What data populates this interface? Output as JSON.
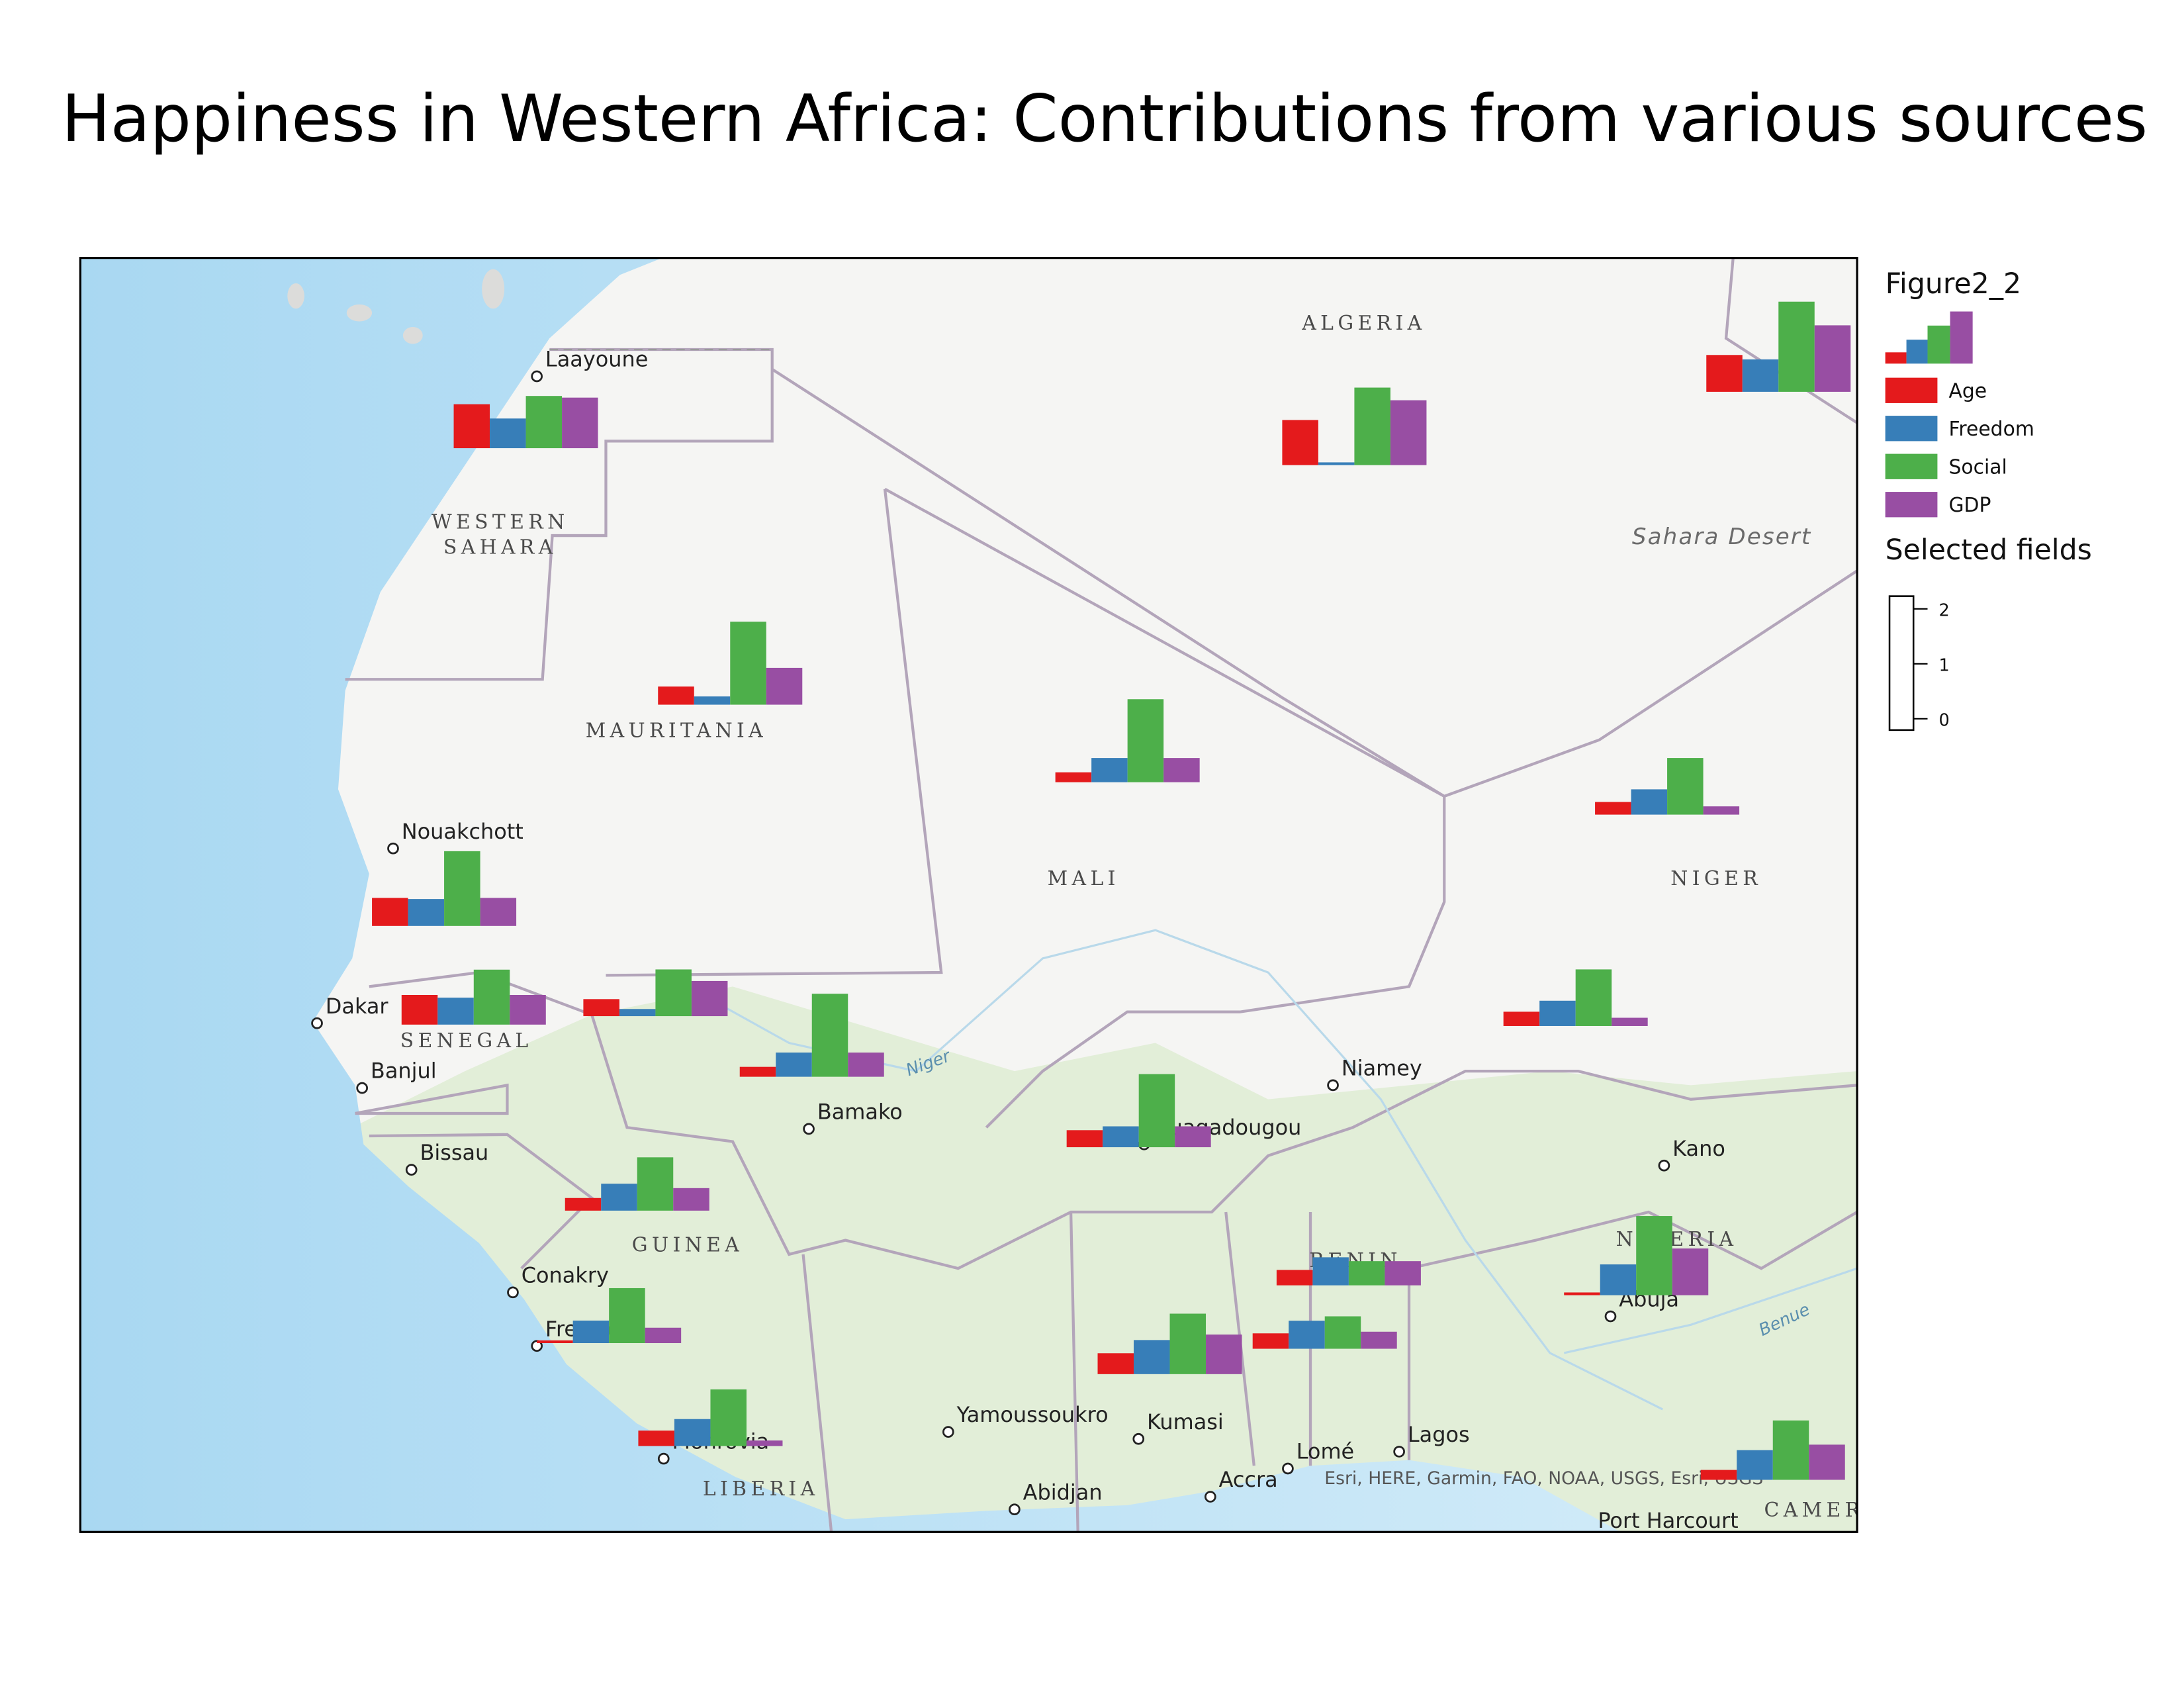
{
  "title": "Happiness in Western Africa: Contributions from various sources",
  "legend": {
    "title": "Figure2_2",
    "series": [
      {
        "name": "Age",
        "color": "#e41a1c"
      },
      {
        "name": "Freedom",
        "color": "#377eb8"
      },
      {
        "name": "Social",
        "color": "#4daf4a"
      },
      {
        "name": "GDP",
        "color": "#984ea3"
      }
    ],
    "size_title": "Selected fields",
    "size_ticks": [
      0,
      1,
      2
    ]
  },
  "charts": [
    {
      "values": [
        0.8,
        0.54,
        0.95,
        0.92
      ]
    },
    {
      "values": [
        0.82,
        0.05,
        1.41,
        1.18
      ]
    },
    {
      "values": [
        0.67,
        0.59,
        1.64,
        1.21
      ]
    },
    {
      "values": [
        0.33,
        0.15,
        1.51,
        0.67
      ]
    },
    {
      "values": [
        0.18,
        0.44,
        1.51,
        0.44
      ]
    },
    {
      "values": [
        0.23,
        0.46,
        1.03,
        0.15
      ]
    },
    {
      "values": [
        0.51,
        0.49,
        1.36,
        0.51
      ]
    },
    {
      "values": [
        0.54,
        0.49,
        1.0,
        0.54
      ]
    },
    {
      "values": [
        0.31,
        0.13,
        0.85,
        0.64
      ]
    },
    {
      "values": [
        0.18,
        0.44,
        1.51,
        0.44
      ]
    },
    {
      "values": [
        0.31,
        0.38,
        1.33,
        0.38
      ]
    },
    {
      "values": [
        0.26,
        0.46,
        1.03,
        0.15
      ]
    },
    {
      "values": [
        0.23,
        0.49,
        0.97,
        0.41
      ]
    },
    {
      "values": [
        0.05,
        0.41,
        1.0,
        0.28
      ]
    },
    {
      "values": [
        0.28,
        0.49,
        1.03,
        0.1
      ]
    },
    {
      "values": [
        0.38,
        0.62,
        1.1,
        0.72
      ]
    },
    {
      "values": [
        0.28,
        0.51,
        0.44,
        0.44
      ]
    },
    {
      "values": [
        0.28,
        0.51,
        0.59,
        0.31
      ]
    },
    {
      "values": [
        0.05,
        0.56,
        1.44,
        0.85
      ]
    },
    {
      "values": [
        0.18,
        0.54,
        1.08,
        0.64
      ]
    }
  ],
  "countries": [
    "ALGERIA",
    "WESTERN",
    "SAHARA",
    "MAURITANIA",
    "MALI",
    "NIGER",
    "SENEGAL",
    "GUINEA",
    "LIBERIA",
    "BENIN",
    "NIGERIA",
    "CAMEROON"
  ],
  "features": [
    "Sahara Desert",
    "Niger",
    "Benue"
  ],
  "cities": [
    "Laayoune",
    "Nouakchott",
    "Dakar",
    "Banjul",
    "Bissau",
    "Bamako",
    "Conakry",
    "Freetown",
    "Monrovia",
    "Yamoussoukro",
    "Abidjan",
    "Kumasi",
    "Accra",
    "Lomé",
    "Lagos",
    "Niamey",
    "Ouagadougou",
    "Kano",
    "Abuja",
    "Port Harcourt"
  ],
  "attribution": "Esri, HERE, Garmin, FAO, NOAA, USGS, Esri, USGS"
}
